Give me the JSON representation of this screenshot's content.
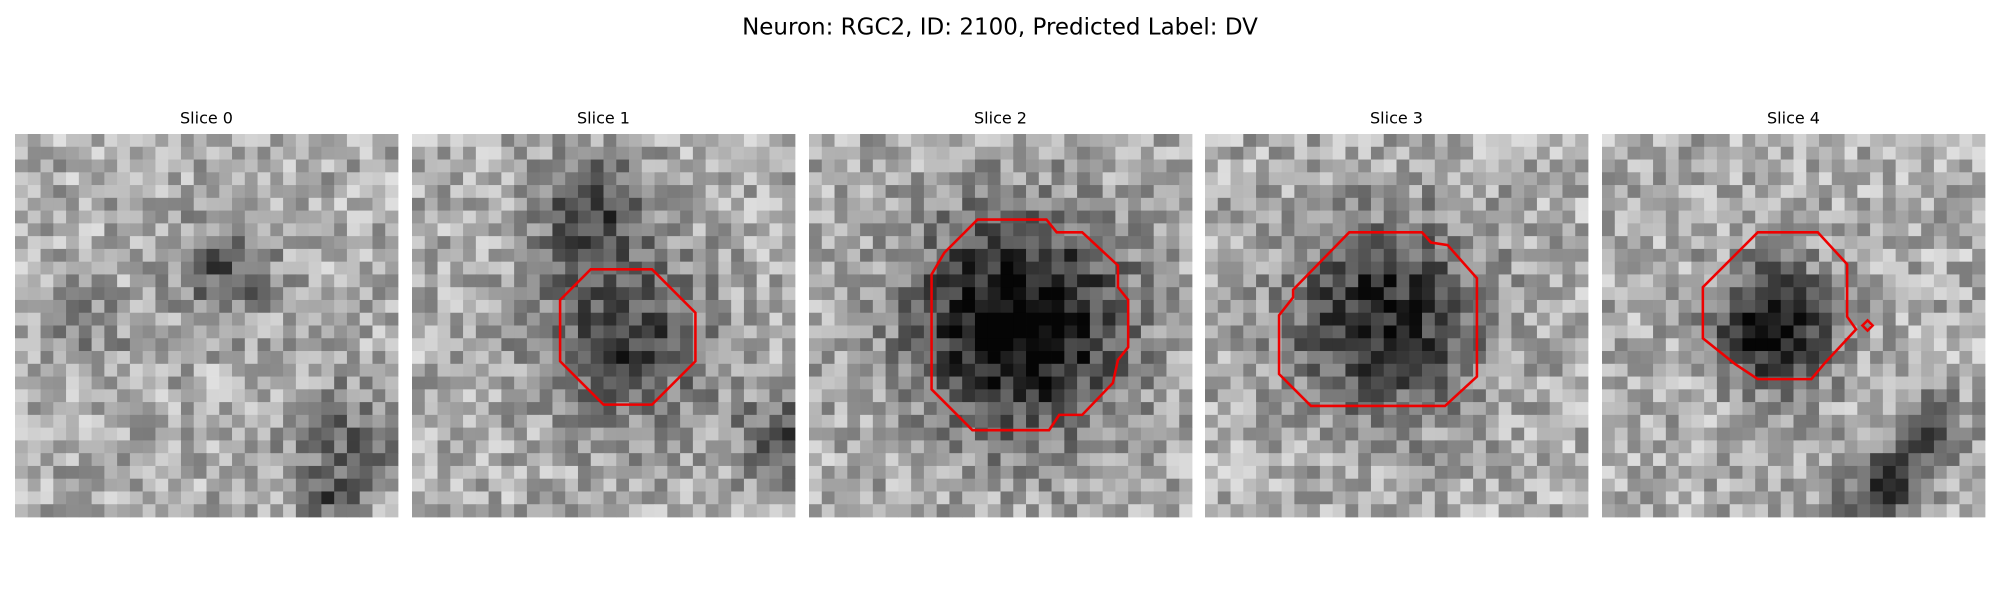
{
  "title": "Neuron: RGC2, ID: 2100, Predicted Label: DV",
  "panels": [
    {
      "title": "Slice 0"
    },
    {
      "title": "Slice 1"
    },
    {
      "title": "Slice 2"
    },
    {
      "title": "Slice 3"
    },
    {
      "title": "Slice 4"
    }
  ]
}
